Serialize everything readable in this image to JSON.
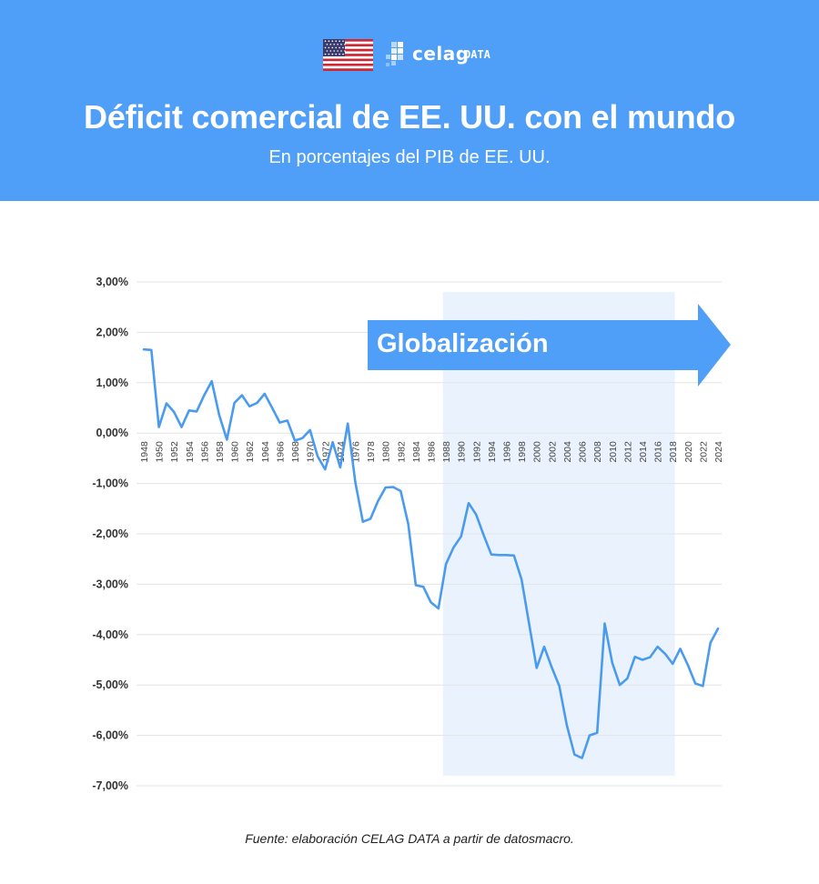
{
  "header": {
    "title": "Déficit comercial de EE. UU. con el mundo",
    "subtitle": "En porcentajes del PIB de EE. UU.",
    "logo_word": "celag",
    "logo_suffix": "DATA"
  },
  "source": "Fuente: elaboración CELAG DATA a partir de datosmacro.",
  "colors": {
    "header_bg": "#4f9ef8",
    "line": "#4a9bef",
    "band": "#eaf3fd",
    "arrow": "#4f9ef8"
  },
  "chart_data": {
    "type": "line",
    "title": "",
    "xlabel": "",
    "ylabel": "",
    "ylim": [
      -7,
      3
    ],
    "y_ticks": [
      {
        "value": 3,
        "label": "3,00%"
      },
      {
        "value": 2,
        "label": "2,00%"
      },
      {
        "value": 1,
        "label": "1,00%"
      },
      {
        "value": 0,
        "label": "0,00%"
      },
      {
        "value": -1,
        "label": "-1,00%"
      },
      {
        "value": -2,
        "label": "-2,00%"
      },
      {
        "value": -3,
        "label": "-3,00%"
      },
      {
        "value": -4,
        "label": "-4,00%"
      },
      {
        "value": -5,
        "label": "-5,00%"
      },
      {
        "value": -6,
        "label": "-6,00%"
      },
      {
        "value": -7,
        "label": "-7,00%"
      }
    ],
    "x_ticks": [
      "1948",
      "1950",
      "1952",
      "1954",
      "1956",
      "1958",
      "1960",
      "1962",
      "1964",
      "1966",
      "1968",
      "1970",
      "1972",
      "1974",
      "1976",
      "1978",
      "1980",
      "1982",
      "1984",
      "1986",
      "1988",
      "1990",
      "1992",
      "1994",
      "1996",
      "1998",
      "2000",
      "2002",
      "2004",
      "2006",
      "2008",
      "2010",
      "2012",
      "2014",
      "2016",
      "2018",
      "2020",
      "2022",
      "2024"
    ],
    "x": [
      1948,
      1949,
      1950,
      1951,
      1952,
      1953,
      1954,
      1955,
      1956,
      1957,
      1958,
      1959,
      1960,
      1961,
      1962,
      1963,
      1964,
      1965,
      1966,
      1967,
      1968,
      1969,
      1970,
      1971,
      1972,
      1973,
      1974,
      1975,
      1976,
      1977,
      1978,
      1979,
      1980,
      1981,
      1982,
      1983,
      1984,
      1985,
      1986,
      1987,
      1988,
      1989,
      1990,
      1991,
      1992,
      1993,
      1994,
      1995,
      1996,
      1997,
      1998,
      1999,
      2000,
      2001,
      2002,
      2003,
      2004,
      2005,
      2006,
      2007,
      2008,
      2009,
      2010,
      2011,
      2012,
      2013,
      2014,
      2015,
      2016,
      2017,
      2018,
      2019,
      2020,
      2021,
      2022,
      2023,
      2024
    ],
    "series": [
      {
        "values": [
          1.66,
          1.65,
          0.12,
          0.59,
          0.42,
          0.12,
          0.45,
          0.43,
          0.75,
          1.03,
          0.35,
          -0.13,
          0.6,
          0.75,
          0.53,
          0.6,
          0.78,
          0.5,
          0.21,
          0.25,
          -0.15,
          -0.1,
          0.06,
          -0.46,
          -0.72,
          -0.18,
          -0.68,
          0.19,
          -0.98,
          -1.76,
          -1.7,
          -1.35,
          -1.08,
          -1.07,
          -1.15,
          -1.8,
          -3.02,
          -3.05,
          -3.36,
          -3.48,
          -2.6,
          -2.27,
          -2.05,
          -1.39,
          -1.62,
          -2.03,
          -2.41,
          -2.42,
          -2.42,
          -2.43,
          -2.9,
          -3.78,
          -4.66,
          -4.24,
          -4.65,
          -5.02,
          -5.8,
          -6.38,
          -6.45,
          -6.0,
          -5.95,
          -3.78,
          -4.56,
          -5.0,
          -4.87,
          -4.44,
          -4.5,
          -4.45,
          -4.24,
          -4.38,
          -4.58,
          -4.28,
          -4.6,
          -4.97,
          -5.02,
          -4.16,
          -3.88
        ]
      }
    ],
    "band": {
      "start": 1987.6,
      "end": 2018.3
    },
    "arrow_label": "Globalización",
    "grid": true,
    "legend": "none"
  }
}
